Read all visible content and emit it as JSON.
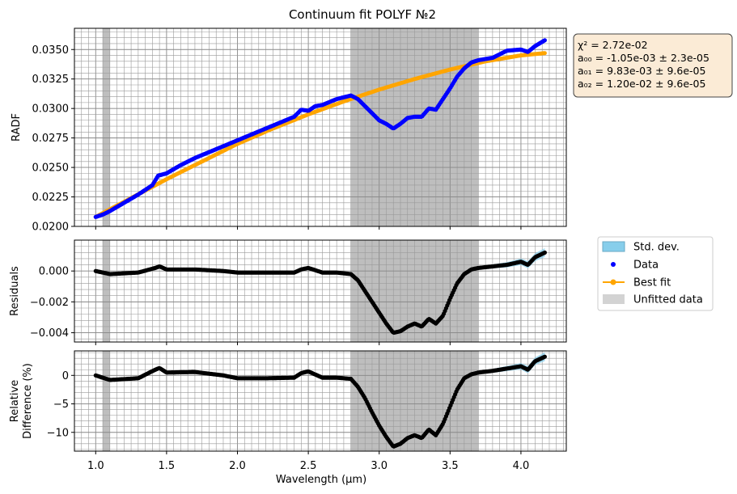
{
  "chart_data": {
    "type": "line",
    "title": "Continuum fit POLYF №2",
    "xlabel": "Wavelength (μm)",
    "xlim": [
      0.85,
      4.32
    ],
    "x_ticks": [
      "1.0",
      "1.5",
      "2.0",
      "2.5",
      "3.0",
      "3.5",
      "4.0"
    ],
    "x_tick_values": [
      1.0,
      1.5,
      2.0,
      2.5,
      3.0,
      3.5,
      4.0
    ],
    "unfitted_regions": [
      [
        1.05,
        1.1
      ],
      [
        2.8,
        3.7
      ]
    ],
    "colors": {
      "data": "#0000ff",
      "fit": "#ffa500",
      "std": "#87ceeb",
      "unfitted": "#bebebe",
      "residual": "#000000"
    },
    "panels": [
      {
        "id": "radf",
        "ylabel": "RADF",
        "ylim": [
          0.02,
          0.0368
        ],
        "y_ticks": [
          "0.0200",
          "0.0225",
          "0.0250",
          "0.0275",
          "0.0300",
          "0.0325",
          "0.0350"
        ],
        "y_tick_values": [
          0.02,
          0.0225,
          0.025,
          0.0275,
          0.03,
          0.0325,
          0.035
        ],
        "series": [
          {
            "name": "Best fit",
            "kind": "fit",
            "x": [
              1.0,
              1.25,
              1.5,
              1.75,
              2.0,
              2.25,
              2.5,
              2.75,
              3.0,
              3.25,
              3.5,
              3.75,
              4.0,
              4.17
            ],
            "y": [
              0.0208,
              0.0224,
              0.024,
              0.0255,
              0.027,
              0.0283,
              0.0295,
              0.0306,
              0.0316,
              0.0325,
              0.0333,
              0.034,
              0.0345,
              0.0347
            ]
          },
          {
            "name": "Data",
            "kind": "data",
            "x": [
              1.0,
              1.05,
              1.1,
              1.2,
              1.3,
              1.4,
              1.44,
              1.5,
              1.6,
              1.7,
              1.8,
              1.9,
              2.0,
              2.1,
              2.2,
              2.3,
              2.4,
              2.45,
              2.5,
              2.55,
              2.6,
              2.7,
              2.8,
              2.85,
              2.9,
              2.95,
              3.0,
              3.05,
              3.1,
              3.15,
              3.2,
              3.25,
              3.3,
              3.35,
              3.4,
              3.45,
              3.5,
              3.55,
              3.6,
              3.65,
              3.7,
              3.8,
              3.9,
              4.0,
              4.05,
              4.1,
              4.17
            ],
            "y": [
              0.0208,
              0.021,
              0.0213,
              0.022,
              0.0227,
              0.0235,
              0.0243,
              0.0245,
              0.0252,
              0.0258,
              0.0263,
              0.0268,
              0.0273,
              0.0278,
              0.0283,
              0.0288,
              0.0293,
              0.0299,
              0.0298,
              0.0302,
              0.0303,
              0.0308,
              0.0311,
              0.0308,
              0.0302,
              0.0296,
              0.029,
              0.0287,
              0.0283,
              0.0287,
              0.0292,
              0.0293,
              0.0293,
              0.03,
              0.0299,
              0.0308,
              0.0317,
              0.0327,
              0.0334,
              0.0339,
              0.0341,
              0.0343,
              0.0349,
              0.035,
              0.0348,
              0.0353,
              0.0358
            ]
          }
        ],
        "annotation": [
          "χ² = 2.72e-02",
          "a₀₀ = -1.05e-03 ± 2.3e-05",
          "a₀₁ = 9.83e-03 ± 9.6e-05",
          "a₀₂ = 1.20e-02 ± 9.6e-05"
        ]
      },
      {
        "id": "residuals",
        "ylabel": "Residuals",
        "ylim": [
          -0.0046,
          0.002
        ],
        "y_ticks": [
          "0.000",
          "−0.002",
          "−0.004"
        ],
        "y_tick_values": [
          0.0,
          -0.002,
          -0.004
        ],
        "series": [
          {
            "name": "Data",
            "kind": "residual",
            "x": [
              1.0,
              1.1,
              1.3,
              1.42,
              1.45,
              1.5,
              1.7,
              1.9,
              2.0,
              2.2,
              2.4,
              2.45,
              2.5,
              2.6,
              2.7,
              2.8,
              2.85,
              2.9,
              2.95,
              3.0,
              3.05,
              3.1,
              3.15,
              3.2,
              3.25,
              3.3,
              3.35,
              3.4,
              3.45,
              3.5,
              3.55,
              3.6,
              3.65,
              3.7,
              3.8,
              3.9,
              4.0,
              4.05,
              4.1,
              4.17
            ],
            "y": [
              0.0,
              -0.0002,
              -0.0001,
              0.0002,
              0.0003,
              0.0001,
              0.0001,
              0.0,
              -0.0001,
              -0.0001,
              -0.0001,
              0.0001,
              0.0002,
              -0.0001,
              -0.0001,
              -0.0002,
              -0.0006,
              -0.0013,
              -0.002,
              -0.0027,
              -0.0034,
              -0.004,
              -0.0039,
              -0.0036,
              -0.0034,
              -0.0036,
              -0.0031,
              -0.0034,
              -0.0029,
              -0.0018,
              -0.0008,
              -0.0002,
              0.0001,
              0.0002,
              0.0003,
              0.0004,
              0.0006,
              0.0004,
              0.0009,
              0.0012
            ]
          }
        ]
      },
      {
        "id": "reldiff",
        "ylabel": "Relative Difference (%)",
        "ylabel_lines": [
          "Relative",
          "Difference (%)"
        ],
        "ylim": [
          -13.3,
          4.3
        ],
        "y_ticks": [
          "0",
          "−5",
          "−10"
        ],
        "y_tick_values": [
          0,
          -5,
          -10
        ],
        "series": [
          {
            "name": "Data",
            "kind": "residual",
            "x": [
              1.0,
              1.1,
              1.3,
              1.42,
              1.45,
              1.5,
              1.7,
              1.9,
              2.0,
              2.2,
              2.4,
              2.45,
              2.5,
              2.6,
              2.7,
              2.8,
              2.85,
              2.9,
              2.95,
              3.0,
              3.05,
              3.1,
              3.15,
              3.2,
              3.25,
              3.3,
              3.35,
              3.4,
              3.45,
              3.5,
              3.55,
              3.6,
              3.65,
              3.7,
              3.8,
              3.9,
              4.0,
              4.05,
              4.1,
              4.17
            ],
            "y": [
              0.0,
              -0.8,
              -0.5,
              1.0,
              1.3,
              0.5,
              0.6,
              0.0,
              -0.5,
              -0.5,
              -0.4,
              0.4,
              0.7,
              -0.4,
              -0.4,
              -0.6,
              -2.0,
              -4.0,
              -6.5,
              -8.8,
              -10.8,
              -12.5,
              -12.0,
              -11.0,
              -10.5,
              -11.0,
              -9.5,
              -10.5,
              -8.5,
              -5.5,
              -2.5,
              -0.5,
              0.2,
              0.5,
              0.8,
              1.2,
              1.6,
              1.0,
              2.5,
              3.3
            ]
          }
        ]
      }
    ],
    "legend": {
      "placement": "right of residuals panel",
      "entries": [
        "Std. dev.",
        "Data",
        "Best fit",
        "Unfitted data"
      ]
    }
  }
}
